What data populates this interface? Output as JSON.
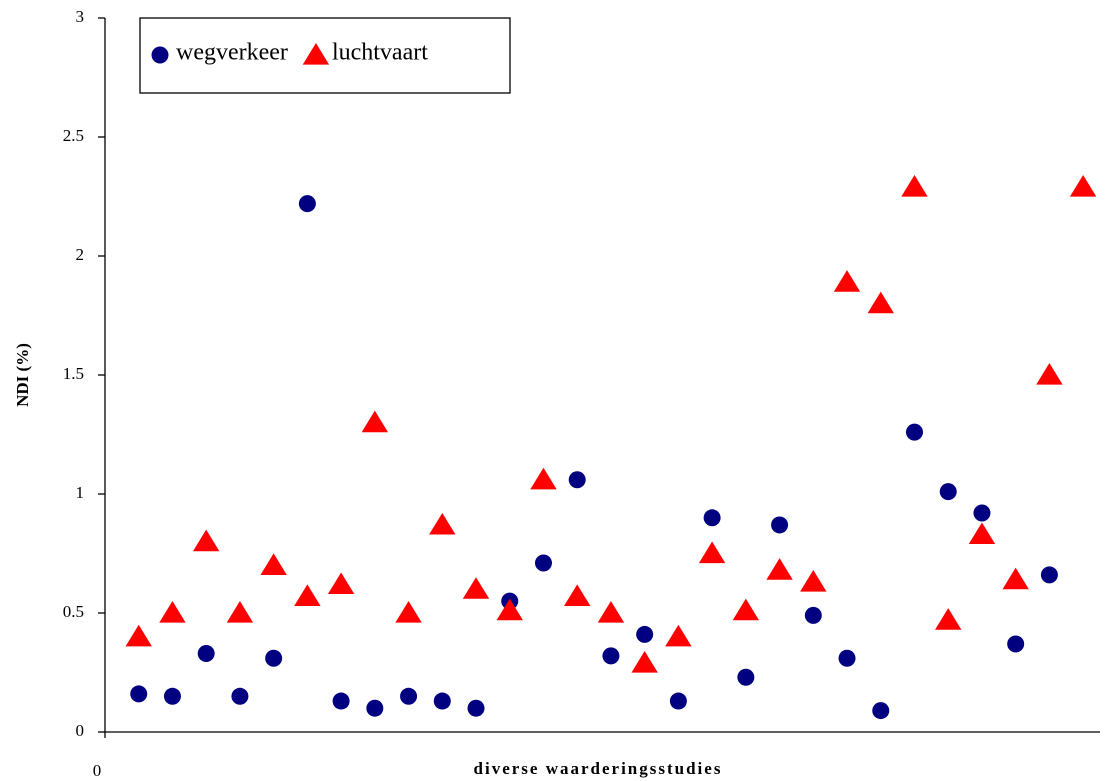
{
  "chart_data": {
    "type": "scatter",
    "ylabel": "NDI (%)",
    "xlabel": "diverse waarderingsstudies",
    "xlim": [
      0,
      29.5
    ],
    "xticks": [
      0
    ],
    "ylim": [
      0,
      3
    ],
    "yticks": [
      0,
      0.5,
      1,
      1.5,
      2,
      2.5,
      3
    ],
    "legend": "upper left",
    "series": [
      {
        "name": "wegverkeer",
        "color": "#000080",
        "marker": "circle",
        "x": [
          1,
          2,
          3,
          4,
          5,
          6,
          7,
          8,
          9,
          10,
          11,
          12,
          13,
          14,
          15,
          16,
          17,
          18,
          19,
          20,
          21,
          22,
          23,
          24,
          25,
          26,
          27,
          28
        ],
        "values": [
          0.16,
          0.15,
          0.33,
          0.15,
          0.31,
          2.22,
          0.13,
          0.1,
          0.15,
          0.13,
          0.1,
          0.55,
          0.71,
          1.06,
          0.32,
          0.41,
          0.13,
          0.9,
          0.23,
          0.87,
          0.49,
          0.31,
          0.09,
          1.26,
          1.01,
          0.92,
          0.37,
          0.66
        ]
      },
      {
        "name": "luchtvaart",
        "color": "#ff0000",
        "marker": "triangle",
        "x": [
          1,
          2,
          3,
          4,
          5,
          6,
          7,
          8,
          9,
          10,
          11,
          12,
          13,
          14,
          15,
          16,
          17,
          18,
          19,
          20,
          21,
          22,
          23,
          24,
          25,
          26,
          27,
          28,
          29
        ],
        "values": [
          0.4,
          0.5,
          0.8,
          0.5,
          0.7,
          0.57,
          0.62,
          1.3,
          0.5,
          0.87,
          0.6,
          0.51,
          1.06,
          0.57,
          0.5,
          0.29,
          0.4,
          0.75,
          0.51,
          0.68,
          0.63,
          1.89,
          1.8,
          2.29,
          0.47,
          0.83,
          0.64,
          1.5,
          2.29
        ]
      }
    ]
  }
}
